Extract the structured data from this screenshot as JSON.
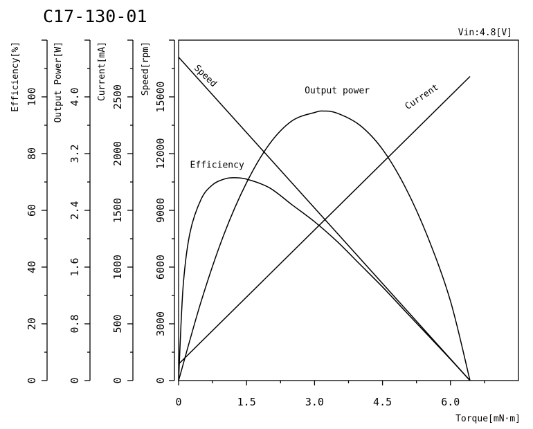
{
  "chart_data": {
    "type": "line",
    "title": "C17-130-01",
    "annotation": "Vin:4.8[V]",
    "xlabel": "Torque[mN·m]",
    "xlim": [
      0,
      7.5
    ],
    "x_ticks": [
      "0",
      "1.5",
      "3.0",
      "4.5",
      "6.0"
    ],
    "x_tick_values": [
      0,
      1.5,
      3.0,
      4.5,
      6.0
    ],
    "grid": false,
    "y_axes": [
      {
        "id": "efficiency",
        "label": "Efficiency[%]",
        "range": [
          0,
          120
        ],
        "ticks": [
          "0",
          "20",
          "40",
          "60",
          "80",
          "100"
        ],
        "tick_values": [
          0,
          20,
          40,
          60,
          80,
          100
        ]
      },
      {
        "id": "power",
        "label": "Output Power[W]",
        "range": [
          0,
          4.8
        ],
        "ticks": [
          "0",
          "0.8",
          "1.6",
          "2.4",
          "3.2",
          "4.0"
        ],
        "tick_values": [
          0,
          0.8,
          1.6,
          2.4,
          3.2,
          4.0
        ]
      },
      {
        "id": "current",
        "label": "Current[mA]",
        "range": [
          0,
          3000
        ],
        "ticks": [
          "0",
          "500",
          "1000",
          "1500",
          "2000",
          "2500"
        ],
        "tick_values": [
          0,
          500,
          1000,
          1500,
          2000,
          2500
        ]
      },
      {
        "id": "speed",
        "label": "Speed[rpm]",
        "range": [
          0,
          18000
        ],
        "ticks": [
          "0",
          "3000",
          "6000",
          "9000",
          "12000",
          "15000"
        ],
        "tick_values": [
          0,
          3000,
          6000,
          9000,
          12000,
          15000
        ]
      }
    ],
    "series": [
      {
        "name": "Speed",
        "axis": "speed",
        "x": [
          0,
          6.43
        ],
        "y": [
          17100,
          0
        ]
      },
      {
        "name": "Current",
        "axis": "current",
        "x": [
          0,
          6.43
        ],
        "y": [
          145,
          2680
        ]
      },
      {
        "name": "Output power",
        "axis": "power",
        "x": [
          0,
          0.5,
          1.0,
          1.5,
          2.0,
          2.5,
          3.0,
          3.2,
          3.5,
          4.0,
          4.5,
          5.0,
          5.5,
          6.0,
          6.43
        ],
        "y": [
          0,
          1.12,
          2.06,
          2.79,
          3.33,
          3.66,
          3.78,
          3.8,
          3.77,
          3.6,
          3.26,
          2.73,
          2.02,
          1.12,
          0
        ]
      },
      {
        "name": "Efficiency",
        "axis": "efficiency",
        "x": [
          0,
          0.1,
          0.25,
          0.5,
          0.75,
          1.0,
          1.2,
          1.5,
          2.0,
          2.5,
          3.0,
          3.5,
          4.0,
          4.5,
          5.0,
          5.5,
          6.0,
          6.43
        ],
        "y": [
          0,
          33,
          52,
          64,
          69,
          71,
          71.5,
          71,
          68,
          62,
          56,
          49,
          41,
          33,
          24.5,
          16,
          7.5,
          0
        ]
      }
    ],
    "series_label_positions": {
      "Speed": [
        0.55,
        16000
      ],
      "Current": [
        5.4,
        2480
      ],
      "Output power": [
        3.5,
        4.05
      ],
      "Efficiency": [
        0.85,
        75
      ]
    }
  }
}
